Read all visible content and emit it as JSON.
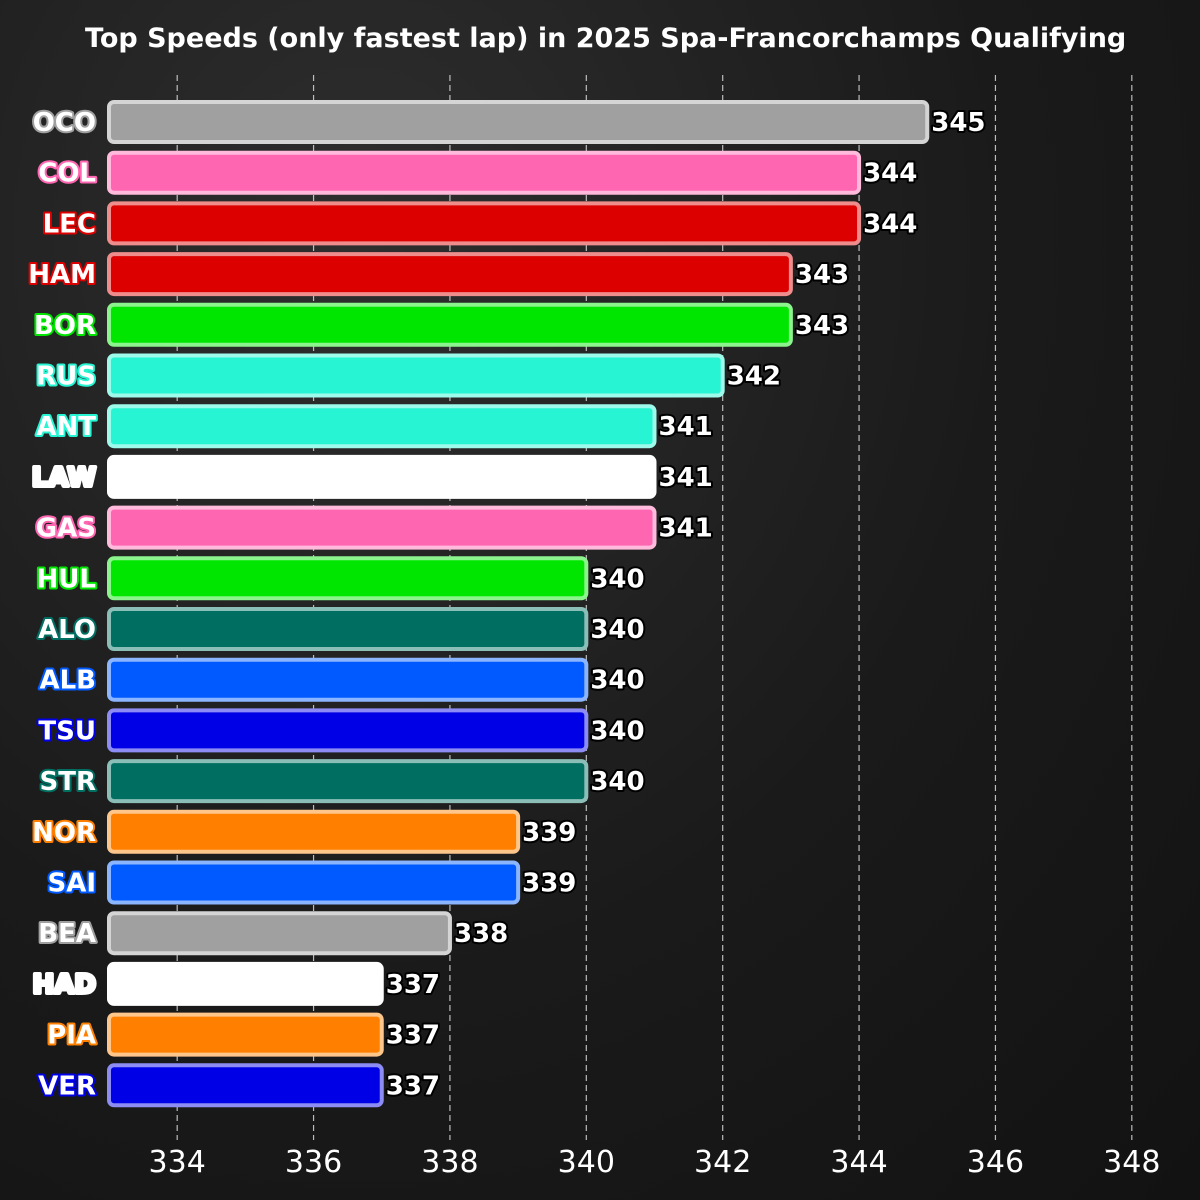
{
  "chart_data": {
    "type": "bar",
    "orientation": "horizontal",
    "title": "Top Speeds (only fastest lap) in 2025 Spa-Francorchamps Qualifying",
    "xlabel": "",
    "ylabel": "",
    "xlim": [
      333,
      349
    ],
    "xticks": [
      334,
      336,
      338,
      340,
      342,
      344,
      346,
      348
    ],
    "grid": true,
    "categories": [
      "OCO",
      "COL",
      "LEC",
      "HAM",
      "BOR",
      "RUS",
      "ANT",
      "LAW",
      "GAS",
      "HUL",
      "ALO",
      "ALB",
      "TSU",
      "STR",
      "NOR",
      "SAI",
      "BEA",
      "HAD",
      "PIA",
      "VER"
    ],
    "values": [
      345,
      344,
      344,
      343,
      343,
      342,
      341,
      341,
      341,
      340,
      340,
      340,
      340,
      340,
      339,
      339,
      338,
      337,
      337,
      337
    ],
    "colors": [
      "#a0a0a0",
      "#ff66b2",
      "#dc0000",
      "#dc0000",
      "#00e600",
      "#27f4d2",
      "#27f4d2",
      "#ffffff",
      "#ff66b2",
      "#00e600",
      "#006f62",
      "#005aff",
      "#0000e6",
      "#006f62",
      "#ff8000",
      "#005aff",
      "#a0a0a0",
      "#ffffff",
      "#ff8000",
      "#0000e6"
    ],
    "label_colors": [
      "#ffffff",
      "#ffffff",
      "#ffffff",
      "#ffffff",
      "#ffffff",
      "#ffffff",
      "#ffffff",
      "#ffffff",
      "#ffffff",
      "#ffffff",
      "#ffffff",
      "#ffffff",
      "#ffffff",
      "#ffffff",
      "#ffffff",
      "#ffffff",
      "#ffffff",
      "#ffffff",
      "#ffffff",
      "#ffffff"
    ]
  }
}
